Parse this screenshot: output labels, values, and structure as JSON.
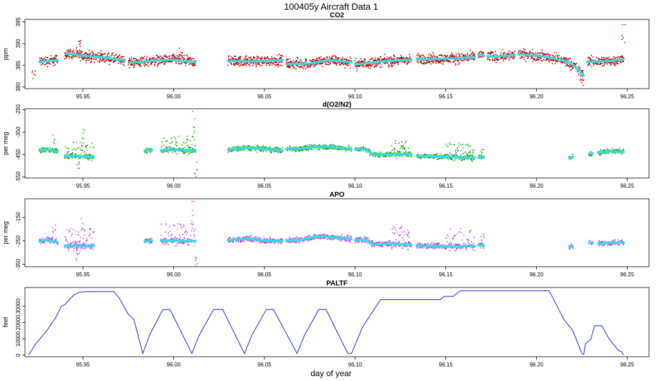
{
  "figure_title": "100405y   Aircraft Data 1",
  "xlabel": "day of year",
  "colors": {
    "co2_points": "#d40000",
    "o2n2_points": "#1ec81e",
    "o2n2_points_dark": "#0a6e0a",
    "apo_points": "#c855f0",
    "smooth": "#3ed6e0",
    "paltf_line": "#1f1fe0",
    "axis": "#000000"
  },
  "chart_data": [
    {
      "type": "scatter",
      "title": "CO2",
      "ylabel": "ppm",
      "x_ticks": [
        "95.95",
        "96.00",
        "96.05",
        "96.10",
        "96.15",
        "96.20",
        "96.25"
      ],
      "y_ticks": [
        "380",
        "385",
        "390",
        "395"
      ],
      "xlim": [
        95.918,
        96.262
      ],
      "ylim": [
        379.6,
        395.6
      ],
      "segments": [
        [
          95.926,
          95.936
        ],
        [
          95.94,
          95.973
        ],
        [
          95.975,
          96.012
        ],
        [
          96.03,
          96.06
        ],
        [
          96.062,
          96.098
        ],
        [
          96.1,
          96.131
        ],
        [
          96.134,
          96.166
        ],
        [
          96.168,
          96.171
        ],
        [
          96.173,
          96.179
        ],
        [
          96.18,
          96.188
        ],
        [
          96.19,
          96.226
        ],
        [
          96.228,
          96.248
        ]
      ],
      "series": [
        {
          "role": "smoothed",
          "points": [
            [
              95.926,
              385.8
            ],
            [
              95.93,
              386.0
            ],
            [
              95.936,
              386.2
            ],
            [
              95.941,
              387.8
            ],
            [
              95.95,
              387.2
            ],
            [
              95.96,
              386.9
            ],
            [
              95.973,
              386.1
            ],
            [
              95.976,
              385.6
            ],
            [
              95.99,
              386.1
            ],
            [
              96.0,
              386.3
            ],
            [
              96.012,
              385.7
            ],
            [
              96.03,
              386.0
            ],
            [
              96.045,
              385.9
            ],
            [
              96.06,
              386.2
            ],
            [
              96.063,
              385.3
            ],
            [
              96.075,
              385.4
            ],
            [
              96.085,
              386.2
            ],
            [
              96.098,
              385.7
            ],
            [
              96.1,
              385.2
            ],
            [
              96.115,
              385.9
            ],
            [
              96.131,
              386.3
            ],
            [
              96.134,
              386.4
            ],
            [
              96.15,
              386.5
            ],
            [
              96.166,
              386.9
            ],
            [
              96.168,
              387.4
            ],
            [
              96.171,
              387.3
            ],
            [
              96.173,
              387.1
            ],
            [
              96.179,
              386.9
            ],
            [
              96.18,
              387.2
            ],
            [
              96.188,
              387.3
            ],
            [
              96.19,
              387.6
            ],
            [
              96.205,
              387.0
            ],
            [
              96.215,
              386.1
            ],
            [
              96.22,
              385.2
            ],
            [
              96.226,
              382.6
            ],
            [
              96.228,
              385.8
            ],
            [
              96.24,
              386.0
            ],
            [
              96.248,
              386.4
            ]
          ]
        }
      ]
    },
    {
      "type": "scatter",
      "title": "d(O2/N2)",
      "ylabel": "per meg",
      "x_ticks": [
        "95.95",
        "96.00",
        "96.05",
        "96.10",
        "96.15",
        "96.20",
        "96.25"
      ],
      "y_ticks": [
        "-550",
        "-450",
        "-350",
        "-250"
      ],
      "xlim": [
        95.918,
        96.262
      ],
      "ylim": [
        -555,
        -245
      ],
      "segments": [
        [
          95.926,
          95.936
        ],
        [
          95.94,
          95.956
        ],
        [
          95.984,
          95.988
        ],
        [
          95.993,
          96.012
        ],
        [
          96.03,
          96.06
        ],
        [
          96.062,
          96.098
        ],
        [
          96.1,
          96.131
        ],
        [
          96.134,
          96.166
        ],
        [
          96.168,
          96.171
        ],
        [
          96.218,
          96.22
        ],
        [
          96.229,
          96.231
        ],
        [
          96.234,
          96.248
        ]
      ],
      "series": [
        {
          "role": "smoothed",
          "points": [
            [
              95.926,
              -432
            ],
            [
              95.93,
              -428
            ],
            [
              95.936,
              -436
            ],
            [
              95.94,
              -455
            ],
            [
              95.948,
              -458
            ],
            [
              95.956,
              -460
            ],
            [
              95.984,
              -432
            ],
            [
              95.988,
              -430
            ],
            [
              95.993,
              -431
            ],
            [
              96.0,
              -428
            ],
            [
              96.012,
              -432
            ],
            [
              96.03,
              -428
            ],
            [
              96.04,
              -420
            ],
            [
              96.05,
              -425
            ],
            [
              96.06,
              -432
            ],
            [
              96.062,
              -424
            ],
            [
              96.07,
              -424
            ],
            [
              96.08,
              -414
            ],
            [
              96.09,
              -418
            ],
            [
              96.098,
              -426
            ],
            [
              96.1,
              -427
            ],
            [
              96.106,
              -426
            ],
            [
              96.11,
              -450
            ],
            [
              96.12,
              -450
            ],
            [
              96.131,
              -447
            ],
            [
              96.134,
              -456
            ],
            [
              96.15,
              -460
            ],
            [
              96.166,
              -464
            ],
            [
              96.168,
              -462
            ],
            [
              96.171,
              -460
            ],
            [
              96.218,
              -466
            ],
            [
              96.22,
              -462
            ],
            [
              96.229,
              -446
            ],
            [
              96.231,
              -446
            ],
            [
              96.234,
              -440
            ],
            [
              96.241,
              -436
            ],
            [
              96.248,
              -438
            ]
          ]
        }
      ]
    },
    {
      "type": "scatter",
      "title": "APO",
      "ylabel": "per meg",
      "x_ticks": [
        "95.95",
        "96.00",
        "96.05",
        "96.10",
        "96.15",
        "96.20",
        "96.25"
      ],
      "y_ticks": [
        "-350",
        "-250",
        "-150"
      ],
      "xlim": [
        95.918,
        96.262
      ],
      "ylim": [
        -360,
        -70
      ],
      "segments": [
        [
          95.926,
          95.936
        ],
        [
          95.94,
          95.956
        ],
        [
          95.984,
          95.988
        ],
        [
          95.993,
          96.012
        ],
        [
          96.03,
          96.06
        ],
        [
          96.062,
          96.098
        ],
        [
          96.1,
          96.131
        ],
        [
          96.134,
          96.166
        ],
        [
          96.168,
          96.171
        ],
        [
          96.218,
          96.22
        ],
        [
          96.229,
          96.231
        ],
        [
          96.234,
          96.248
        ]
      ],
      "series": [
        {
          "role": "smoothed",
          "points": [
            [
              95.926,
              -252
            ],
            [
              95.93,
              -244
            ],
            [
              95.936,
              -255
            ],
            [
              95.94,
              -270
            ],
            [
              95.948,
              -272
            ],
            [
              95.956,
              -270
            ],
            [
              95.984,
              -252
            ],
            [
              95.988,
              -248
            ],
            [
              95.993,
              -250
            ],
            [
              96.0,
              -250
            ],
            [
              96.012,
              -250
            ],
            [
              96.03,
              -246
            ],
            [
              96.04,
              -240
            ],
            [
              96.05,
              -248
            ],
            [
              96.06,
              -252
            ],
            [
              96.062,
              -248
            ],
            [
              96.07,
              -245
            ],
            [
              96.08,
              -230
            ],
            [
              96.09,
              -236
            ],
            [
              96.098,
              -242
            ],
            [
              96.1,
              -246
            ],
            [
              96.106,
              -245
            ],
            [
              96.11,
              -265
            ],
            [
              96.12,
              -262
            ],
            [
              96.131,
              -268
            ],
            [
              96.134,
              -270
            ],
            [
              96.15,
              -274
            ],
            [
              96.166,
              -272
            ],
            [
              96.168,
              -268
            ],
            [
              96.171,
              -270
            ],
            [
              96.218,
              -274
            ],
            [
              96.22,
              -272
            ],
            [
              96.229,
              -258
            ],
            [
              96.231,
              -256
            ],
            [
              96.234,
              -262
            ],
            [
              96.241,
              -258
            ],
            [
              96.248,
              -256
            ]
          ]
        }
      ]
    },
    {
      "type": "line",
      "title": "PALTF",
      "ylabel": "feet",
      "x_ticks": [
        "95.95",
        "96.00",
        "96.05",
        "96.10",
        "96.15",
        "96.20",
        "96.25"
      ],
      "y_ticks": [
        "0",
        "10000",
        "20000",
        "30000"
      ],
      "xlim": [
        95.918,
        96.262
      ],
      "ylim": [
        -1000,
        41500
      ],
      "series": [
        {
          "name": "PALTF",
          "points": [
            [
              95.92,
              0
            ],
            [
              95.924,
              7000
            ],
            [
              95.93,
              15000
            ],
            [
              95.935,
              23000
            ],
            [
              95.938,
              30000
            ],
            [
              95.94,
              31000
            ],
            [
              95.945,
              37000
            ],
            [
              95.948,
              38500
            ],
            [
              95.952,
              39000
            ],
            [
              95.957,
              39000
            ],
            [
              95.963,
              39000
            ],
            [
              95.967,
              39000
            ],
            [
              95.97,
              35000
            ],
            [
              95.975,
              25000
            ],
            [
              95.978,
              22000
            ],
            [
              95.983,
              1000
            ],
            [
              95.987,
              13000
            ],
            [
              95.994,
              28000
            ],
            [
              95.998,
              28000
            ],
            [
              96.01,
              1000
            ],
            [
              96.014,
              12000
            ],
            [
              96.022,
              28000
            ],
            [
              96.027,
              28000
            ],
            [
              96.039,
              1000
            ],
            [
              96.043,
              12000
            ],
            [
              96.051,
              28000
            ],
            [
              96.055,
              28000
            ],
            [
              96.068,
              1000
            ],
            [
              96.072,
              12000
            ],
            [
              96.08,
              28000
            ],
            [
              96.084,
              28000
            ],
            [
              96.096,
              1000
            ],
            [
              96.098,
              1000
            ],
            [
              96.104,
              17000
            ],
            [
              96.114,
              34000
            ],
            [
              96.132,
              34000
            ],
            [
              96.141,
              34000
            ],
            [
              96.147,
              34000
            ],
            [
              96.149,
              36000
            ],
            [
              96.154,
              36000
            ],
            [
              96.158,
              39500
            ],
            [
              96.175,
              39500
            ],
            [
              96.195,
              39500
            ],
            [
              96.207,
              39500
            ],
            [
              96.215,
              22000
            ],
            [
              96.22,
              15000
            ],
            [
              96.225,
              1000
            ],
            [
              96.226,
              500
            ],
            [
              96.227,
              7000
            ],
            [
              96.23,
              10000
            ],
            [
              96.232,
              18000
            ],
            [
              96.236,
              18000
            ],
            [
              96.24,
              10000
            ],
            [
              96.245,
              3000
            ],
            [
              96.247,
              2000
            ],
            [
              96.248,
              0
            ]
          ]
        }
      ]
    }
  ]
}
